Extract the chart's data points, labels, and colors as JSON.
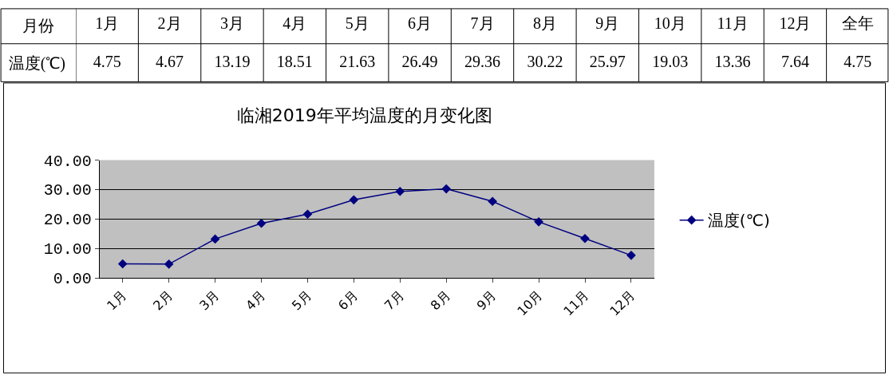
{
  "chart_data": [
    {
      "type": "heatmap",
      "annotations": [
        "月份"
      ],
      "categories": [
        "1月",
        "2月",
        "3月",
        "4月",
        "5月",
        "6月",
        "7月",
        "8月",
        "9月",
        "10月",
        "11月",
        "12月",
        "全年"
      ],
      "y_categories": [
        "温度(℃)"
      ],
      "data_labels": true,
      "cells": [
        [
          4.75,
          4.67,
          13.19,
          18.51,
          21.63,
          26.49,
          29.36,
          30.22,
          25.97,
          19.03,
          13.36,
          7.64,
          4.75
        ]
      ]
    },
    {
      "type": "line",
      "title": "临湘2019年平均温度的月变化图",
      "categories": [
        "1月",
        "2月",
        "3月",
        "4月",
        "5月",
        "6月",
        "7月",
        "8月",
        "9月",
        "10月",
        "11月",
        "12月"
      ],
      "series": [
        {
          "name": "温度(℃)",
          "color": "#000080",
          "values": [
            4.75,
            4.67,
            13.19,
            18.51,
            21.63,
            26.49,
            29.36,
            30.22,
            25.97,
            19.03,
            13.36,
            7.64
          ]
        }
      ],
      "ylim": [
        0,
        40
      ],
      "yticks": [
        {
          "value": 0,
          "label": "0.00"
        },
        {
          "value": 10,
          "label": "10.00"
        },
        {
          "value": 20,
          "label": "20.00"
        },
        {
          "value": 30,
          "label": "30.00"
        },
        {
          "value": 40,
          "label": "40.00"
        }
      ],
      "grid": "y",
      "legend": "right",
      "marker": "diamond",
      "line_style": "solid"
    }
  ]
}
